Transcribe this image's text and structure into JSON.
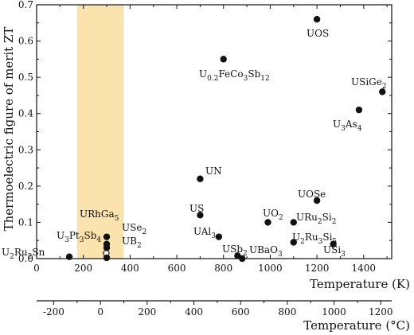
{
  "chart_data": {
    "type": "scatter",
    "xlabel": "Temperature (K)",
    "ylabel": "Thermoelectric figure of merit ZT",
    "x2label": "Temperature (°C)",
    "xlim": [
      0,
      1520
    ],
    "ylim": [
      0,
      0.7
    ],
    "x_ticks": [
      0,
      200,
      400,
      600,
      800,
      1000,
      1200,
      1400
    ],
    "x_tick_labels": [
      "0",
      "200",
      "400",
      "600",
      "800",
      "1000",
      "1200",
      "1400"
    ],
    "x2_ticks_celsius": [
      -200,
      0,
      200,
      400,
      600,
      800,
      1000,
      1200
    ],
    "x2_tick_labels": [
      "-200",
      "0",
      "200",
      "400",
      "600",
      "800",
      "1000",
      "1200"
    ],
    "y_ticks": [
      0,
      0.1,
      0.2,
      0.3,
      0.4,
      0.5,
      0.6,
      0.7
    ],
    "y_tick_labels": [
      "0.0",
      "0.1",
      "0.2",
      "0.3",
      "0.4",
      "0.5",
      "0.6",
      "0.7"
    ],
    "highlight_band_K": [
      173,
      373
    ],
    "highlight_color": "#fbe3ad",
    "marker_color": "#111111",
    "points": [
      {
        "label": "U2Ru2Sn",
        "x": 140,
        "y": 0.005,
        "filled": true
      },
      {
        "label": "U3Pt3Sb4",
        "x": 298,
        "y": 0.015,
        "filled": false
      },
      {
        "label": "URhGa5",
        "x": 300,
        "y": 0.06,
        "filled": true
      },
      {
        "label": "USe2",
        "x": 300,
        "y": 0.04,
        "filled": true
      },
      {
        "label": "UB2",
        "x": 300,
        "y": 0.03,
        "filled": true
      },
      {
        "label": "URhGa5-b",
        "x": 300,
        "y": 0.002,
        "filled": true
      },
      {
        "label": "UN",
        "x": 700,
        "y": 0.22,
        "filled": true
      },
      {
        "label": "US",
        "x": 700,
        "y": 0.12,
        "filled": true
      },
      {
        "label": "UAl3",
        "x": 780,
        "y": 0.06,
        "filled": true
      },
      {
        "label": "UO0.2FeCo3Sb12",
        "x": 800,
        "y": 0.55,
        "filled": true
      },
      {
        "label": "USb2",
        "x": 860,
        "y": 0.008,
        "filled": true
      },
      {
        "label": "UBaO3",
        "x": 880,
        "y": 0.0,
        "filled": true
      },
      {
        "label": "UO2",
        "x": 990,
        "y": 0.1,
        "filled": true
      },
      {
        "label": "URu2Si2",
        "x": 1100,
        "y": 0.1,
        "filled": true
      },
      {
        "label": "U2Ru3Si5",
        "x": 1100,
        "y": 0.045,
        "filled": true
      },
      {
        "label": "UOSe",
        "x": 1200,
        "y": 0.16,
        "filled": true
      },
      {
        "label": "UOS",
        "x": 1200,
        "y": 0.66,
        "filled": true
      },
      {
        "label": "USi3",
        "x": 1270,
        "y": 0.04,
        "filled": true
      },
      {
        "label": "U3As4",
        "x": 1380,
        "y": 0.41,
        "filled": true
      },
      {
        "label": "USiGe2",
        "x": 1480,
        "y": 0.46,
        "filled": true
      }
    ],
    "labels": [
      {
        "main": "U",
        "sub": "2",
        "rest": "Ru",
        "sub2": "2",
        "rest2": "Sn"
      },
      {
        "main": "U",
        "sub": "3",
        "rest": "Pt",
        "sub2": "3",
        "rest2": "Sb",
        "sub3": "4"
      },
      {
        "main": "URhGa",
        "sub": "5"
      },
      {
        "main": "USe",
        "sub": "2"
      },
      {
        "main": "UB",
        "sub": "2"
      },
      {
        "main": "UN"
      },
      {
        "main": "US"
      },
      {
        "main": "UAl",
        "sub": "3"
      },
      {
        "main": "U",
        "sub": "0.2",
        "rest": "FeCo",
        "sub2": "3",
        "rest2": "Sb",
        "sub3": "12"
      },
      {
        "main": "USb",
        "sub": "2"
      },
      {
        "main": "UBaO",
        "sub": "3"
      },
      {
        "main": "UO",
        "sub": "2"
      },
      {
        "main": "URu",
        "sub": "2",
        "rest": "Si",
        "sub2": "2"
      },
      {
        "main": "U",
        "sub": "2",
        "rest": "Ru",
        "sub2": "3",
        "rest2": "Si",
        "sub3": "5"
      },
      {
        "main": "UOSe"
      },
      {
        "main": "UOS"
      },
      {
        "main": "USi",
        "sub": "3"
      },
      {
        "main": "U",
        "sub": "3",
        "rest": "As",
        "sub2": "4"
      },
      {
        "main": "USiGe",
        "sub": "2"
      }
    ]
  }
}
